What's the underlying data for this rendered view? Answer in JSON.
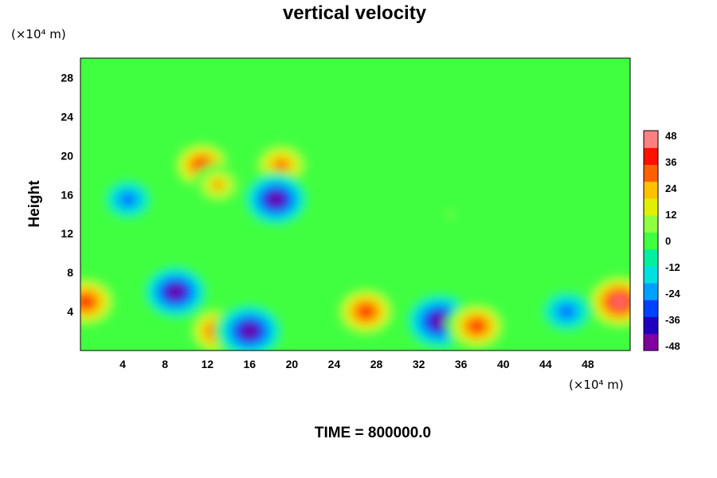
{
  "chart_data": {
    "type": "heatmap",
    "title": "vertical velocity",
    "ylabel": "Height",
    "x_unit": "(×10⁴ m)",
    "y_unit": "(×10⁴ m)",
    "xlim": [
      0,
      52
    ],
    "ylim": [
      0,
      30
    ],
    "x_ticks": [
      "4",
      "8",
      "12",
      "16",
      "20",
      "24",
      "28",
      "32",
      "36",
      "40",
      "44",
      "48"
    ],
    "y_ticks": [
      "4",
      "8",
      "12",
      "16",
      "20",
      "24",
      "28"
    ],
    "colorbar": {
      "min": -48,
      "max": 48,
      "ticks": [
        "48",
        "36",
        "24",
        "12",
        "0",
        "-12",
        "-24",
        "-36",
        "-48"
      ],
      "colors": [
        "#8000a0",
        "#2000c0",
        "#0040ff",
        "#00a0ff",
        "#00e0e0",
        "#00f0a0",
        "#40ff40",
        "#90ff40",
        "#e0f000",
        "#ffc000",
        "#ff6000",
        "#ff1000",
        "#ff8080"
      ]
    },
    "background_value": 0,
    "features": [
      {
        "x": 0.5,
        "y": 5,
        "value": 40
      },
      {
        "x": 51,
        "y": 5,
        "value": 44
      },
      {
        "x": 13,
        "y": 2,
        "value": 36
      },
      {
        "x": 16,
        "y": 2,
        "value": -46
      },
      {
        "x": 27,
        "y": 4,
        "value": 38
      },
      {
        "x": 34,
        "y": 3,
        "value": -48
      },
      {
        "x": 37.5,
        "y": 2.5,
        "value": 36
      },
      {
        "x": 9,
        "y": 6,
        "value": -44
      },
      {
        "x": 46,
        "y": 4,
        "value": -32
      },
      {
        "x": 11.5,
        "y": 19,
        "value": 36
      },
      {
        "x": 19,
        "y": 19,
        "value": 34
      },
      {
        "x": 18.5,
        "y": 15.5,
        "value": -44
      },
      {
        "x": 4.5,
        "y": 15.5,
        "value": -30
      },
      {
        "x": 13,
        "y": 17,
        "value": 26
      },
      {
        "x": 35,
        "y": 14,
        "value": 10
      }
    ]
  },
  "footer": {
    "time_label": "TIME = 800000.0"
  }
}
